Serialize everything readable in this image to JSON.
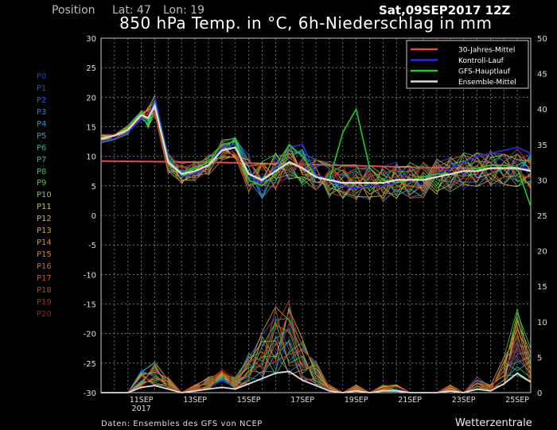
{
  "header": {
    "position_label": "Position",
    "lat_label": "Lat: 47",
    "lon_label": "Lon: 19",
    "title": "850 hPa Temp. in °C, 6h-Niederschlag in mm",
    "run_date": "Sat,09SEP2017 12Z"
  },
  "members": [
    {
      "label": "P0",
      "color": "#1a3bd8"
    },
    {
      "label": "P1",
      "color": "#2047e0"
    },
    {
      "label": "P2",
      "color": "#2a5ee8"
    },
    {
      "label": "P3",
      "color": "#2c75e6"
    },
    {
      "label": "P4",
      "color": "#2a92d8"
    },
    {
      "label": "P5",
      "color": "#2aa8c0"
    },
    {
      "label": "P6",
      "color": "#2cb890"
    },
    {
      "label": "P7",
      "color": "#34c070"
    },
    {
      "label": "P8",
      "color": "#3cc458"
    },
    {
      "label": "P9",
      "color": "#52c840"
    },
    {
      "label": "P10",
      "color": "#6ccc34"
    },
    {
      "label": "P11",
      "color": "#b8c434"
    },
    {
      "label": "P12",
      "color": "#d4b030"
    },
    {
      "label": "P13",
      "color": "#dc9c2c"
    },
    {
      "label": "P14",
      "color": "#e08828"
    },
    {
      "label": "P15",
      "color": "#dc7428"
    },
    {
      "label": "P16",
      "color": "#d46424"
    },
    {
      "label": "P17",
      "color": "#c85020"
    },
    {
      "label": "P18",
      "color": "#b8401c"
    },
    {
      "label": "P19",
      "color": "#a83018"
    },
    {
      "label": "P20",
      "color": "#982414"
    }
  ],
  "footer": {
    "source": "Daten: Ensembles des GFS von NCEP",
    "brand": "Wetterzentrale"
  },
  "chart_data": {
    "type": "line",
    "title": "850 hPa Temp. in °C, 6h-Niederschlag in mm",
    "ylim_left": [
      -30,
      30
    ],
    "yticks_left": [
      "30",
      "25",
      "20",
      "15",
      "10",
      "5",
      "0",
      "-5",
      "-10",
      "-15",
      "-20",
      "-25",
      "-30"
    ],
    "ylim_right": [
      0,
      50
    ],
    "yticks_right": [
      "50",
      "45",
      "40",
      "35",
      "30",
      "25",
      "20",
      "15",
      "10",
      "5",
      "0"
    ],
    "x_range_hours": [
      0,
      384
    ],
    "xticks": [
      {
        "label": "11SEP",
        "sublabel": "2017",
        "hour": 36
      },
      {
        "label": "13SEP",
        "sublabel": "",
        "hour": 84
      },
      {
        "label": "15SEP",
        "sublabel": "",
        "hour": 132
      },
      {
        "label": "17SEP",
        "sublabel": "",
        "hour": 180
      },
      {
        "label": "19SEP",
        "sublabel": "",
        "hour": 228
      },
      {
        "label": "21SEP",
        "sublabel": "",
        "hour": 276
      },
      {
        "label": "23SEP",
        "sublabel": "",
        "hour": 324
      },
      {
        "label": "25SEP",
        "sublabel": "",
        "hour": 372
      }
    ],
    "legend": [
      {
        "label": "30-Jahres-Mittel",
        "color": "#e8484c"
      },
      {
        "label": "Kontroll-Lauf",
        "color": "#2a2ae8"
      },
      {
        "label": "GFS-Hauptlauf",
        "color": "#22cc22"
      },
      {
        "label": "Ensemble-Mittel",
        "color": "#dddddd"
      }
    ],
    "climate_mean": {
      "x": [
        0,
        96,
        192,
        288,
        384
      ],
      "y": [
        9.2,
        9.0,
        8.6,
        8.1,
        7.8
      ]
    },
    "ensemble_mean": {
      "x": [
        0,
        12,
        24,
        36,
        42,
        48,
        60,
        72,
        84,
        96,
        108,
        120,
        132,
        144,
        156,
        168,
        180,
        192,
        204,
        216,
        228,
        240,
        252,
        264,
        276,
        288,
        300,
        312,
        324,
        336,
        348,
        360,
        372,
        384
      ],
      "y": [
        13,
        13.5,
        14.5,
        17,
        16.5,
        18.5,
        9,
        7,
        7.5,
        8.5,
        11,
        11.5,
        7,
        6,
        7.5,
        9,
        8,
        6.5,
        6,
        5.5,
        5.5,
        5.5,
        5.5,
        6,
        6,
        6,
        6.5,
        7,
        7.5,
        7.5,
        8,
        8,
        8,
        7.5
      ]
    },
    "control_run": {
      "x": [
        0,
        12,
        24,
        36,
        42,
        48,
        60,
        72,
        84,
        96,
        108,
        120,
        132,
        144,
        156,
        168,
        180,
        192,
        204,
        216,
        228,
        240,
        252,
        264,
        276,
        288,
        300,
        312,
        324,
        336,
        348,
        360,
        372,
        384
      ],
      "y": [
        12.5,
        13,
        14,
        16.5,
        16,
        20,
        10,
        6.5,
        7,
        8.5,
        11.5,
        12,
        6.5,
        5.5,
        8,
        11.5,
        12,
        7,
        6,
        5,
        4.5,
        5,
        5,
        5.5,
        6,
        6.5,
        7,
        8,
        9,
        10,
        10.5,
        11,
        11.5,
        10.5
      ]
    },
    "gfs_main_run": {
      "x": [
        0,
        12,
        24,
        36,
        42,
        48,
        60,
        72,
        84,
        96,
        108,
        120,
        132,
        144,
        156,
        168,
        180,
        192,
        204,
        216,
        228,
        240,
        252,
        264,
        276,
        288,
        300,
        312,
        324,
        336,
        348,
        360,
        372,
        384
      ],
      "y": [
        13,
        13.5,
        15,
        17.5,
        16,
        19,
        9.5,
        7,
        8,
        9,
        12,
        12.5,
        6,
        5,
        7,
        12,
        10,
        6.5,
        6,
        14,
        18,
        8,
        6,
        5.5,
        6,
        6.5,
        7,
        7,
        7.5,
        8,
        8.5,
        8.5,
        8,
        1.5
      ]
    },
    "precip_members_mm": {
      "note": "6h precipitation spikes on right axis (0-50 mm)",
      "x": [
        0,
        24,
        36,
        48,
        60,
        72,
        84,
        96,
        108,
        120,
        132,
        144,
        156,
        168,
        180,
        192,
        204,
        216,
        228,
        240,
        252,
        264,
        276,
        288,
        300,
        312,
        324,
        336,
        348,
        360,
        372,
        384
      ],
      "max": [
        0,
        0,
        3,
        4,
        2,
        0,
        1,
        2,
        3,
        2,
        5,
        8,
        11,
        12,
        7,
        4,
        1,
        0,
        1,
        0,
        1,
        1,
        0,
        0,
        0,
        1,
        0,
        2,
        1,
        5,
        11,
        6
      ]
    }
  }
}
